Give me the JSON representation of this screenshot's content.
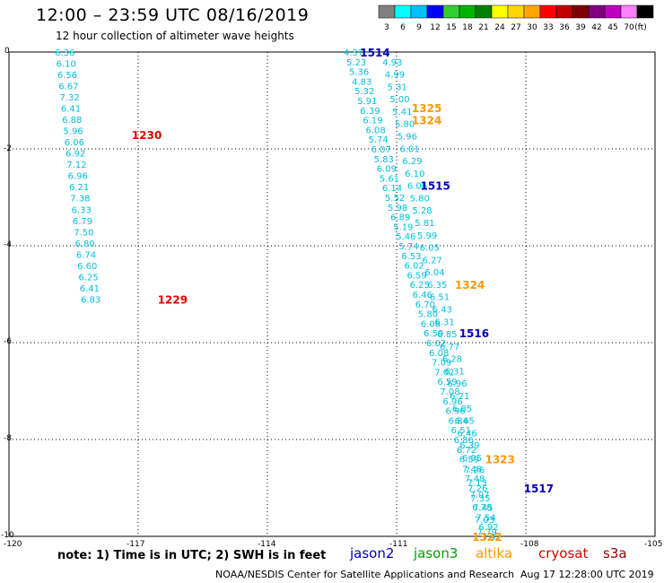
{
  "header": {
    "title": "12:00 – 23:59 UTC 08/16/2019",
    "subtitle": "12 hour collection of altimeter wave heights"
  },
  "legend": {
    "unit": "(ft)",
    "bins": [
      {
        "label": "3",
        "color": "#808080"
      },
      {
        "label": "6",
        "color": "#00ffff"
      },
      {
        "label": "9",
        "color": "#00bfff"
      },
      {
        "label": "12",
        "color": "#0000ff"
      },
      {
        "label": "15",
        "color": "#32cd32"
      },
      {
        "label": "18",
        "color": "#00b300"
      },
      {
        "label": "21",
        "color": "#008000"
      },
      {
        "label": "24",
        "color": "#ffff00"
      },
      {
        "label": "27",
        "color": "#ffd700"
      },
      {
        "label": "30",
        "color": "#ffa500"
      },
      {
        "label": "33",
        "color": "#ff0000"
      },
      {
        "label": "36",
        "color": "#c00000"
      },
      {
        "label": "39",
        "color": "#800000"
      },
      {
        "label": "42",
        "color": "#800080"
      },
      {
        "label": "45",
        "color": "#c000c0"
      },
      {
        "label": "70",
        "color": "#ff80ff"
      },
      {
        "label": "",
        "color": "#000000"
      }
    ]
  },
  "axes": {
    "x_ticks": [
      "-120",
      "-117",
      "-114",
      "-111",
      "-108",
      "-105"
    ],
    "y_ticks": [
      "0",
      "-2",
      "-4",
      "-6",
      "-8",
      "-10"
    ]
  },
  "colors": {
    "cyan": "#00bfdf",
    "jason2": "#0000c0",
    "jason3": "#00a000",
    "altika": "#ff9900",
    "cryosat": "#e00000",
    "s3a": "#a00000"
  },
  "pass_labels": [
    {
      "text": "1514",
      "sat": "jason2",
      "lon": -111.5,
      "lat": 0.0
    },
    {
      "text": "1325",
      "sat": "altika",
      "lon": -110.3,
      "lat": -1.15
    },
    {
      "text": "1324",
      "sat": "altika",
      "lon": -110.3,
      "lat": -1.4
    },
    {
      "text": "1230",
      "sat": "cryosat",
      "lon": -116.8,
      "lat": -1.7
    },
    {
      "text": "1515",
      "sat": "jason2",
      "lon": -110.1,
      "lat": -2.75
    },
    {
      "text": "1324",
      "sat": "altika",
      "lon": -109.3,
      "lat": -4.8
    },
    {
      "text": "1229",
      "sat": "cryosat",
      "lon": -116.2,
      "lat": -5.1
    },
    {
      "text": "1516",
      "sat": "jason2",
      "lon": -109.2,
      "lat": -5.8
    },
    {
      "text": "1323",
      "sat": "altika",
      "lon": -108.6,
      "lat": -8.4
    },
    {
      "text": "1517",
      "sat": "jason2",
      "lon": -107.7,
      "lat": -9.0
    },
    {
      "text": "1322",
      "sat": "altika",
      "lon": -108.9,
      "lat": -10.0
    }
  ],
  "tracks": [
    {
      "name": "cryosat_track",
      "lon_start": -118.7,
      "lat_start": 0.0,
      "lon_end": -118.1,
      "lat_end": -5.1,
      "values": [
        "6.36",
        "6.10",
        "6.56",
        "6.67",
        "7.32",
        "6.41",
        "6.88",
        "5.96",
        "6.06",
        "6.92",
        "7.12",
        "6.96",
        "6.21",
        "7.38",
        "6.33",
        "6.79",
        "7.50",
        "6.80",
        "6.74",
        "6.60",
        "6.25",
        "6.41",
        "6.83"
      ]
    },
    {
      "name": "jason2_pass_1514_1517",
      "lon_start": -112.0,
      "lat_start": 0.0,
      "lon_end": -108.8,
      "lat_end": -10.0,
      "values": [
        "4.37",
        "5.23",
        "5.36",
        "4.83",
        "5.32",
        "5.91",
        "6.39",
        "6.19",
        "6.08",
        "5.74",
        "6.07",
        "5.83",
        "6.09",
        "5.61",
        "6.14",
        "5.52",
        "5.98",
        "6.89",
        "5.19",
        "5.46",
        "5.74",
        "6.53",
        "6.02",
        "6.59",
        "6.25",
        "6.46",
        "6.70",
        "5.80",
        "6.08",
        "6.59",
        "6.02",
        "6.08",
        "7.09",
        "7.02",
        "6.59",
        "7.08",
        "6.96",
        "6.96",
        "6.84",
        "6.51",
        "6.86",
        "6.72",
        "6.59",
        "7.48",
        "7.48",
        "7.26",
        "7.35",
        "7.45",
        "7.54",
        "6.92",
        "7.47"
      ]
    },
    {
      "name": "altika_pass_1322_1325",
      "lon_start": -111.1,
      "lat_start": -0.2,
      "lon_end": -108.9,
      "lat_end": -9.9,
      "values": [
        "4.93",
        "4.99",
        "5.31",
        "5.00",
        "5.41",
        "5.80",
        "5.96",
        "6.01",
        "6.29",
        "6.10",
        "6.06",
        "5.80",
        "5.28",
        "5.81",
        "5.99",
        "6.05",
        "6.27",
        "6.04",
        "6.35",
        "6.51",
        "6.43",
        "6.31",
        "6.85",
        "6.77",
        "6.28",
        "6.31",
        "6.96",
        "6.21",
        "6.85",
        "6.65",
        "6.46",
        "6.39",
        "6.95",
        "7.26",
        "7.13",
        "7.07",
        "6.78",
        "7.03",
        "7.79"
      ]
    }
  ],
  "footer": {
    "note": "note:  1) Time is in UTC;  2) SWH is in feet",
    "satellites": [
      {
        "name": "jason2",
        "color": "#0000c0"
      },
      {
        "name": "jason3",
        "color": "#00a000"
      },
      {
        "name": "altika",
        "color": "#ff9900"
      },
      {
        "name": "cryosat",
        "color": "#e00000"
      },
      {
        "name": "s3a",
        "color": "#a00000"
      }
    ],
    "credit": "NOAA/NESDIS Center for Satellite Applications and Research",
    "timestamp": "Aug 17 12:28:00 UTC 2019"
  }
}
